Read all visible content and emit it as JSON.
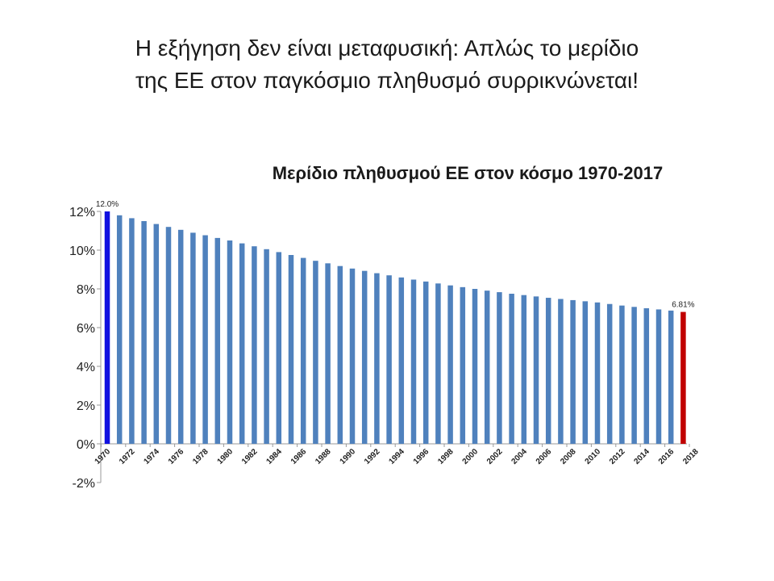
{
  "slide": {
    "title_line1": "Η εξήγηση δεν είναι μεταφυσική: Απλώς το μερίδιο",
    "title_line2": "της ΕΕ στον παγκόσμιο πληθυσμό συρρικνώνεται!"
  },
  "chart_data": {
    "type": "bar",
    "title": "Μερίδιο πληθυσμού ΕΕ στον κόσμο 1970-2017",
    "xlabel": "",
    "ylabel": "",
    "ylim": [
      -2,
      12
    ],
    "yticks": [
      "-2%",
      "0%",
      "2%",
      "4%",
      "6%",
      "8%",
      "10%",
      "12%"
    ],
    "ytick_values": [
      -2,
      0,
      2,
      4,
      6,
      8,
      10,
      12
    ],
    "x_tick_labels": [
      "1970",
      "1972",
      "1974",
      "1976",
      "1978",
      "1980",
      "1982",
      "1984",
      "1986",
      "1988",
      "1990",
      "1992",
      "1994",
      "1996",
      "1998",
      "2000",
      "2002",
      "2004",
      "2006",
      "2008",
      "2010",
      "2012",
      "2014",
      "2016",
      "2018"
    ],
    "categories": [
      1970,
      1971,
      1972,
      1973,
      1974,
      1975,
      1976,
      1977,
      1978,
      1979,
      1980,
      1981,
      1982,
      1983,
      1984,
      1985,
      1986,
      1987,
      1988,
      1989,
      1990,
      1991,
      1992,
      1993,
      1994,
      1995,
      1996,
      1997,
      1998,
      1999,
      2000,
      2001,
      2002,
      2003,
      2004,
      2005,
      2006,
      2007,
      2008,
      2009,
      2010,
      2011,
      2012,
      2013,
      2014,
      2015,
      2016,
      2017
    ],
    "values": [
      12.0,
      11.8,
      11.65,
      11.5,
      11.35,
      11.2,
      11.05,
      10.9,
      10.77,
      10.63,
      10.5,
      10.35,
      10.2,
      10.05,
      9.9,
      9.75,
      9.6,
      9.45,
      9.32,
      9.18,
      9.05,
      8.93,
      8.81,
      8.7,
      8.59,
      8.48,
      8.38,
      8.28,
      8.18,
      8.09,
      8.0,
      7.91,
      7.83,
      7.75,
      7.68,
      7.61,
      7.54,
      7.48,
      7.42,
      7.36,
      7.3,
      7.22,
      7.14,
      7.07,
      7.0,
      6.94,
      6.88,
      6.81
    ],
    "bar_colors": {
      "default": "#4f81bd",
      "first": "#1010e0",
      "last": "#c00000"
    },
    "data_labels": [
      {
        "index": 0,
        "text": "12.0%"
      },
      {
        "index": 47,
        "text": "6.81%"
      }
    ],
    "grid": false,
    "legend": "none"
  }
}
